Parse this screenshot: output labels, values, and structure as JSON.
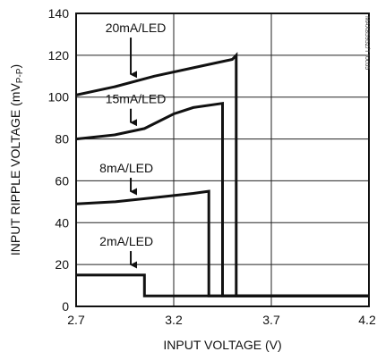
{
  "chart_data": {
    "type": "line",
    "title": "",
    "xlabel": "INPUT VOLTAGE (V)",
    "ylabel_main": "INPUT RIPPLE VOLTAGE (mV",
    "ylabel_sub": "P-P",
    "ylabel_close": ")",
    "xlim": [
      2.7,
      4.2
    ],
    "ylim": [
      0,
      140
    ],
    "xticks": [
      2.7,
      3.2,
      3.7,
      4.2
    ],
    "xtick_labels": [
      "2.7",
      "3.2",
      "3.7",
      "4.2"
    ],
    "yticks": [
      0,
      20,
      40,
      60,
      80,
      100,
      120,
      140
    ],
    "ytick_labels": [
      "0",
      "20",
      "40",
      "60",
      "80",
      "100",
      "120",
      "140"
    ],
    "grid": true,
    "side_code": "MAX8595Z/T toc05",
    "series": [
      {
        "name": "20mA/LED",
        "x": [
          2.7,
          2.9,
          3.1,
          3.3,
          3.5,
          3.52,
          3.52,
          4.2
        ],
        "y": [
          101,
          105,
          110,
          114,
          118,
          120,
          5,
          5
        ]
      },
      {
        "name": "15mA/LED",
        "x": [
          2.7,
          2.9,
          3.05,
          3.2,
          3.3,
          3.45,
          3.45,
          4.2
        ],
        "y": [
          80,
          82,
          85,
          92,
          95,
          97,
          5,
          5
        ]
      },
      {
        "name": "8mA/LED",
        "x": [
          2.7,
          2.9,
          3.1,
          3.3,
          3.38,
          3.38,
          4.2
        ],
        "y": [
          49,
          50,
          52,
          54,
          55,
          5,
          5
        ]
      },
      {
        "name": "2mA/LED",
        "x": [
          2.7,
          2.75,
          2.9,
          3.05,
          3.05,
          4.2
        ],
        "y": [
          15,
          15,
          15,
          15,
          5,
          5
        ]
      }
    ],
    "annotations": [
      {
        "text": "20mA/LED",
        "series_index": 0,
        "arrow_to_x": 2.98,
        "arrow_to_y": 107,
        "text_x": 2.85,
        "text_y": 131
      },
      {
        "text": "15mA/LED",
        "series_index": 1,
        "arrow_to_x": 2.98,
        "arrow_to_y": 84,
        "text_x": 2.85,
        "text_y": 97
      },
      {
        "text": "8mA/LED",
        "series_index": 2,
        "arrow_to_x": 2.98,
        "arrow_to_y": 51,
        "text_x": 2.82,
        "text_y": 64
      },
      {
        "text": "2mA/LED",
        "series_index": 3,
        "arrow_to_x": 2.98,
        "arrow_to_y": 16,
        "text_x": 2.82,
        "text_y": 29
      }
    ]
  }
}
